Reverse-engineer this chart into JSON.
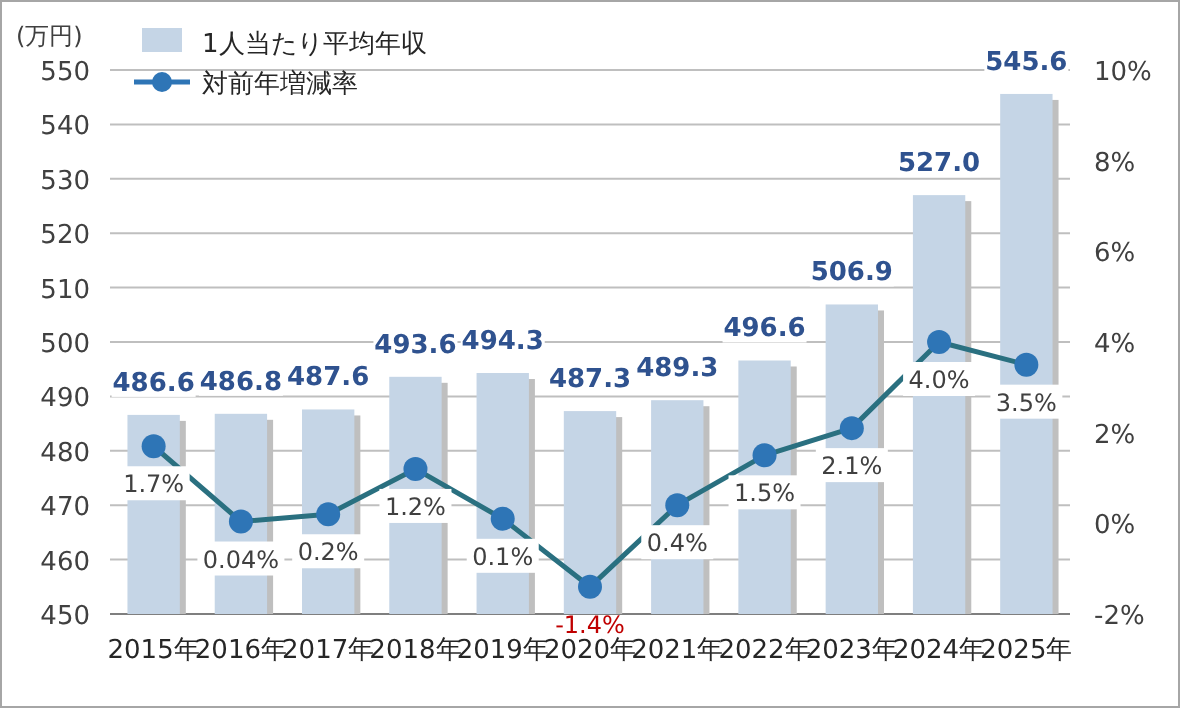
{
  "chart_data": {
    "type": "bar",
    "ylabel": "(万円)",
    "categories": [
      "2015年",
      "2016年",
      "2017年",
      "2018年",
      "2019年",
      "2020年",
      "2021年",
      "2022年",
      "2023年",
      "2024年",
      "2025年"
    ],
    "series": [
      {
        "name": "1人当たり平均年収",
        "color": "#c5d5e6",
        "values": [
          486.6,
          486.8,
          487.6,
          493.6,
          494.3,
          487.3,
          489.3,
          496.6,
          506.9,
          527.0,
          545.6
        ],
        "value_labels": [
          "486.6",
          "486.8",
          "487.6",
          "493.6",
          "494.3",
          "487.3",
          "489.3",
          "496.6",
          "506.9",
          "527.0",
          "545.6"
        ]
      },
      {
        "name": "対前年増減率",
        "type": "line",
        "axis": "y2",
        "color": "#2a7080",
        "values": [
          1.7,
          0.04,
          0.2,
          1.2,
          0.1,
          -1.4,
          0.4,
          1.5,
          2.1,
          4.0,
          3.5
        ],
        "value_labels": [
          "1.7%",
          "0.04%",
          "0.2%",
          "1.2%",
          "0.1%",
          "-1.4%",
          "0.4%",
          "1.5%",
          "2.1%",
          "4.0%",
          "3.5%"
        ]
      }
    ],
    "ylim": [
      450,
      550
    ],
    "yticks": [
      450,
      460,
      470,
      480,
      490,
      500,
      510,
      520,
      530,
      540,
      550
    ],
    "y2lim": [
      -2,
      10
    ],
    "y2ticks": [
      {
        "value": -2,
        "label": "-2%"
      },
      {
        "value": 0,
        "label": "0%"
      },
      {
        "value": 2,
        "label": "2%"
      },
      {
        "value": 4,
        "label": "4%"
      },
      {
        "value": 6,
        "label": "6%"
      },
      {
        "value": 8,
        "label": "8%"
      },
      {
        "value": 10,
        "label": "10%"
      }
    ],
    "grid": "y",
    "legend": "top left",
    "marker": "circle"
  }
}
